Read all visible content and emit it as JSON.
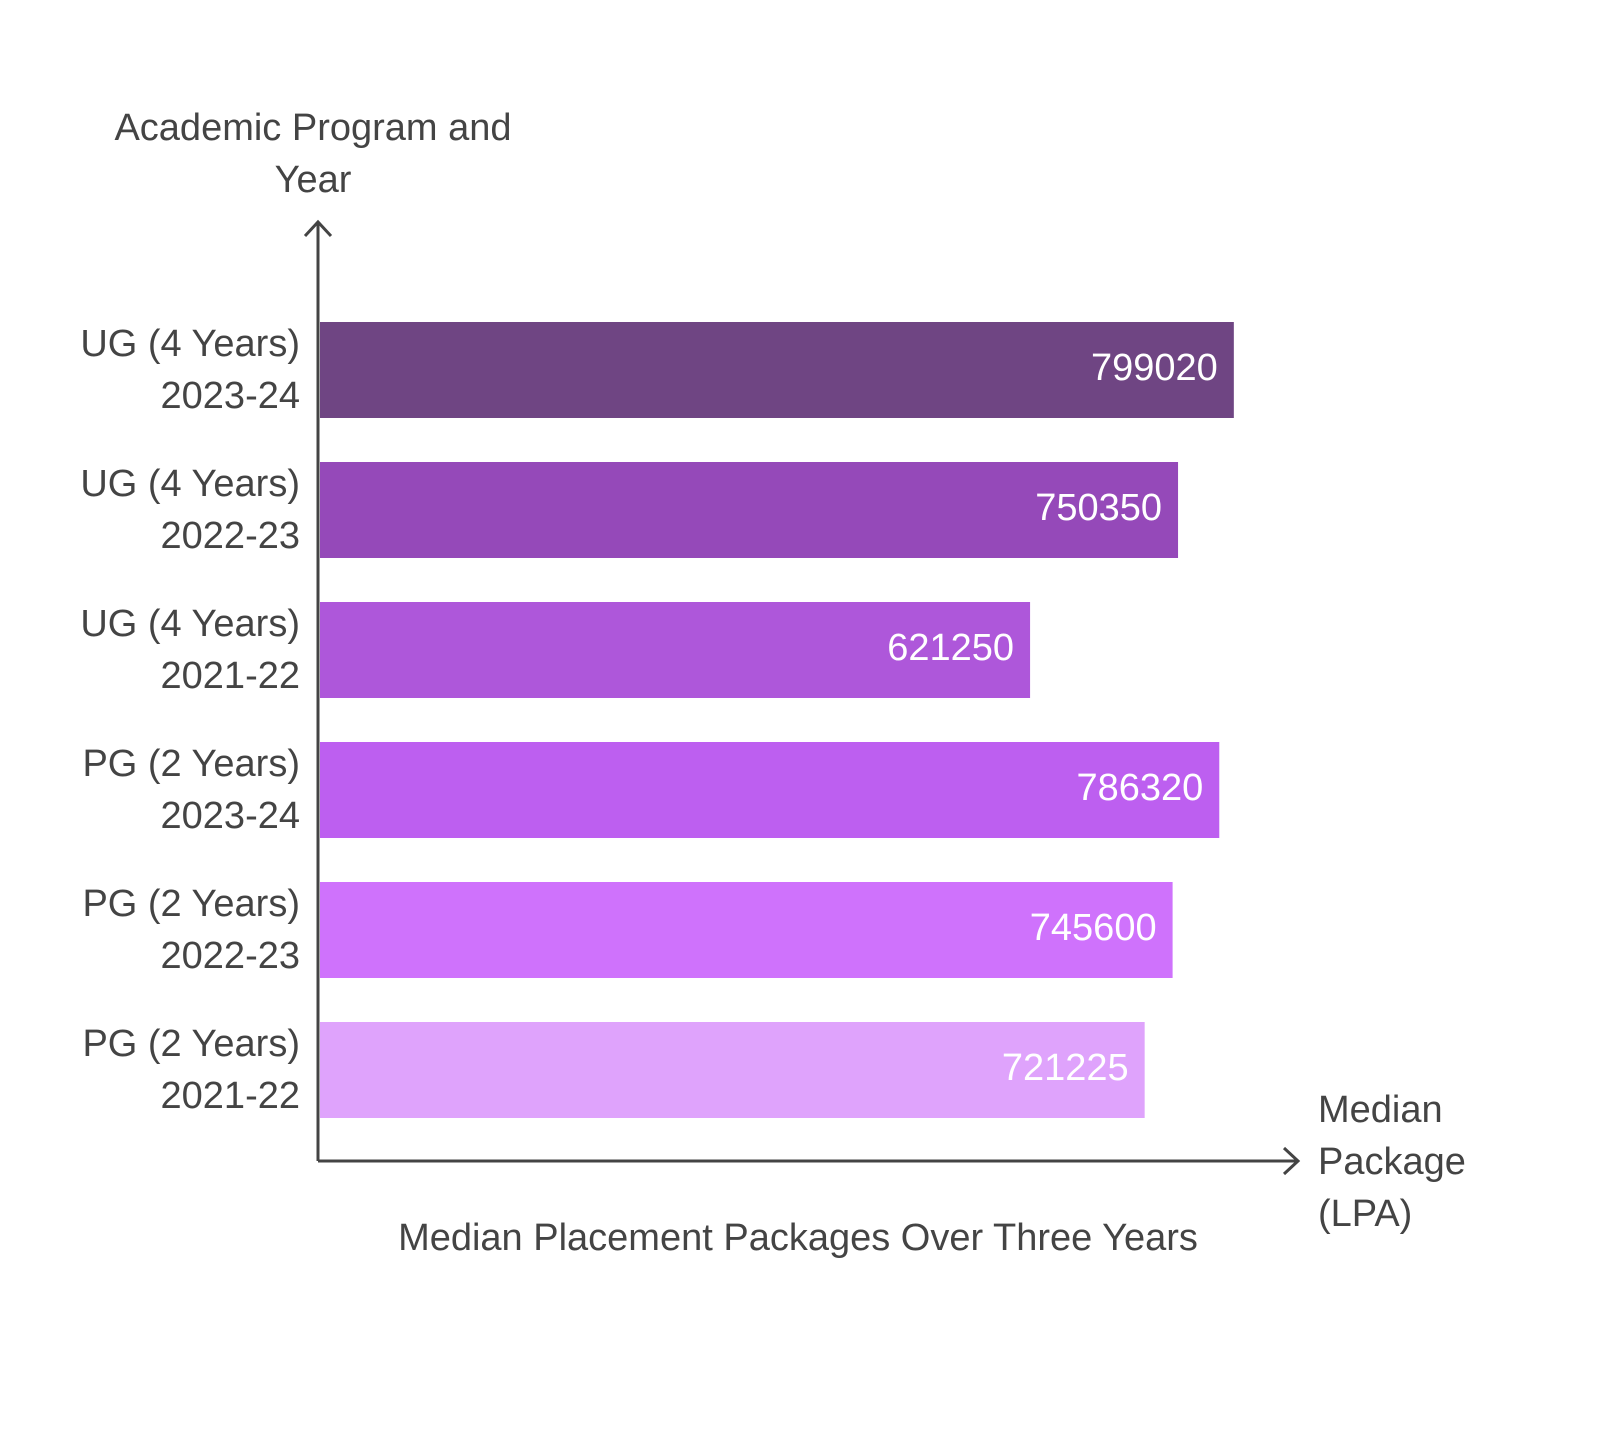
{
  "chart_data": {
    "type": "bar",
    "orientation": "horizontal",
    "title": "Median Placement Packages Over Three Years",
    "y_label": "Academic Program and Year",
    "x_label": "Median Package (LPA)",
    "categories": [
      "UG (4 Years) 2023-24",
      "UG (4 Years) 2022-23",
      "UG (4 Years) 2021-22",
      "PG (2 Years) 2023-24",
      "PG (2 Years) 2022-23",
      "PG (2 Years) 2021-22"
    ],
    "values": [
      799020,
      750350,
      621250,
      786320,
      745600,
      721225
    ],
    "colors": [
      "#6f4583",
      "#9549b9",
      "#ae57da",
      "#bd5ff0",
      "#cf72fc",
      "#dfa3fc"
    ],
    "xlim": [
      0,
      855000
    ]
  }
}
